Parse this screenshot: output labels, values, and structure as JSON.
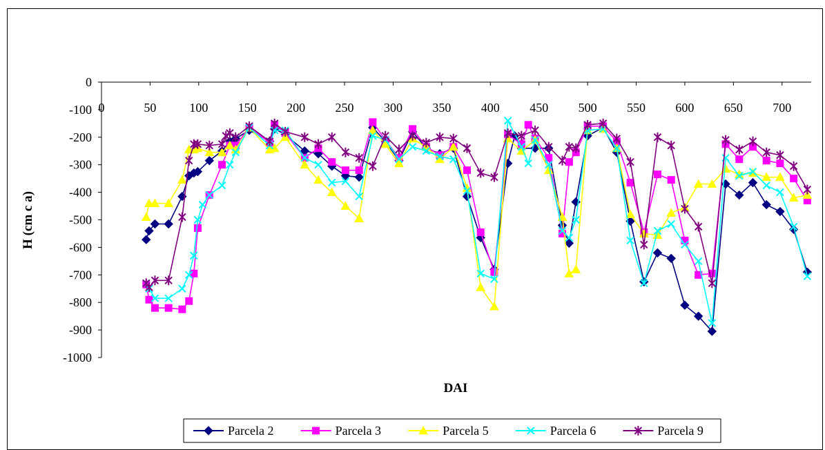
{
  "chart_data": {
    "type": "line",
    "title": "",
    "xlabel": "DAI",
    "ylabel": "H (cm c a)",
    "xlim": [
      0,
      730
    ],
    "ylim": [
      -1000,
      0
    ],
    "x_ticks": [
      0,
      50,
      100,
      150,
      200,
      250,
      300,
      350,
      400,
      450,
      500,
      550,
      600,
      650,
      700
    ],
    "y_ticks": [
      0,
      -100,
      -200,
      -300,
      -400,
      -500,
      -600,
      -700,
      -800,
      -900,
      -1000
    ],
    "grid": false,
    "legend_position": "bottom",
    "series": [
      {
        "name": "Parcela 2",
        "color": "#000080",
        "marker": "diamond",
        "points": [
          [
            46,
            -572
          ],
          [
            49,
            -540
          ],
          [
            55,
            -515
          ],
          [
            69,
            -515
          ],
          [
            83,
            -415
          ],
          [
            90,
            -340
          ],
          [
            95,
            -330
          ],
          [
            99,
            -325
          ],
          [
            111,
            -285
          ],
          [
            124,
            -250
          ],
          [
            132,
            -215
          ],
          [
            138,
            -205
          ],
          [
            152,
            -175
          ],
          [
            173,
            -215
          ],
          [
            178,
            -170
          ],
          [
            189,
            -190
          ],
          [
            209,
            -250
          ],
          [
            223,
            -260
          ],
          [
            237,
            -305
          ],
          [
            251,
            -340
          ],
          [
            265,
            -345
          ],
          [
            279,
            -165
          ],
          [
            292,
            -215
          ],
          [
            306,
            -285
          ],
          [
            320,
            -180
          ],
          [
            334,
            -240
          ],
          [
            348,
            -260
          ],
          [
            362,
            -240
          ],
          [
            376,
            -415
          ],
          [
            390,
            -565
          ],
          [
            404,
            -680
          ],
          [
            418,
            -295
          ],
          [
            425,
            -195
          ],
          [
            432,
            -240
          ],
          [
            446,
            -240
          ],
          [
            460,
            -240
          ],
          [
            474,
            -520
          ],
          [
            481,
            -585
          ],
          [
            488,
            -435
          ],
          [
            500,
            -195
          ],
          [
            516,
            -165
          ],
          [
            530,
            -255
          ],
          [
            544,
            -505
          ],
          [
            558,
            -725
          ],
          [
            572,
            -620
          ],
          [
            586,
            -640
          ],
          [
            600,
            -810
          ],
          [
            614,
            -850
          ],
          [
            628,
            -905
          ],
          [
            642,
            -370
          ],
          [
            656,
            -410
          ],
          [
            670,
            -365
          ],
          [
            684,
            -445
          ],
          [
            698,
            -470
          ],
          [
            712,
            -535
          ],
          [
            726,
            -690
          ]
        ]
      },
      {
        "name": "Parcela 3",
        "color": "#ff00ff",
        "marker": "square",
        "points": [
          [
            46,
            -735
          ],
          [
            49,
            -790
          ],
          [
            55,
            -820
          ],
          [
            69,
            -820
          ],
          [
            83,
            -825
          ],
          [
            90,
            -795
          ],
          [
            95,
            -695
          ],
          [
            99,
            -530
          ],
          [
            111,
            -410
          ],
          [
            124,
            -300
          ],
          [
            132,
            -230
          ],
          [
            138,
            -230
          ],
          [
            152,
            -165
          ],
          [
            173,
            -220
          ],
          [
            178,
            -155
          ],
          [
            189,
            -185
          ],
          [
            209,
            -275
          ],
          [
            223,
            -240
          ],
          [
            237,
            -290
          ],
          [
            251,
            -320
          ],
          [
            265,
            -320
          ],
          [
            279,
            -145
          ],
          [
            292,
            -210
          ],
          [
            306,
            -275
          ],
          [
            320,
            -170
          ],
          [
            334,
            -235
          ],
          [
            348,
            -265
          ],
          [
            362,
            -235
          ],
          [
            376,
            -320
          ],
          [
            390,
            -545
          ],
          [
            404,
            -690
          ],
          [
            418,
            -190
          ],
          [
            432,
            -225
          ],
          [
            439,
            -155
          ],
          [
            446,
            -205
          ],
          [
            460,
            -275
          ],
          [
            474,
            -550
          ],
          [
            481,
            -290
          ],
          [
            488,
            -255
          ],
          [
            500,
            -160
          ],
          [
            516,
            -160
          ],
          [
            530,
            -215
          ],
          [
            544,
            -365
          ],
          [
            558,
            -545
          ],
          [
            572,
            -335
          ],
          [
            586,
            -355
          ],
          [
            600,
            -575
          ],
          [
            614,
            -700
          ],
          [
            628,
            -695
          ],
          [
            642,
            -225
          ],
          [
            656,
            -280
          ],
          [
            670,
            -235
          ],
          [
            684,
            -285
          ],
          [
            698,
            -295
          ],
          [
            712,
            -350
          ],
          [
            726,
            -430
          ]
        ]
      },
      {
        "name": "Parcela 5",
        "color": "#ffff00",
        "marker": "triangle",
        "points": [
          [
            46,
            -490
          ],
          [
            49,
            -440
          ],
          [
            55,
            -440
          ],
          [
            69,
            -440
          ],
          [
            83,
            -355
          ],
          [
            90,
            -245
          ],
          [
            95,
            -245
          ],
          [
            99,
            -240
          ],
          [
            111,
            -255
          ],
          [
            124,
            -255
          ],
          [
            132,
            -230
          ],
          [
            138,
            -245
          ],
          [
            152,
            -165
          ],
          [
            173,
            -245
          ],
          [
            178,
            -240
          ],
          [
            189,
            -200
          ],
          [
            209,
            -300
          ],
          [
            223,
            -355
          ],
          [
            237,
            -400
          ],
          [
            251,
            -450
          ],
          [
            265,
            -495
          ],
          [
            279,
            -175
          ],
          [
            292,
            -225
          ],
          [
            306,
            -295
          ],
          [
            320,
            -205
          ],
          [
            334,
            -235
          ],
          [
            348,
            -280
          ],
          [
            362,
            -235
          ],
          [
            376,
            -385
          ],
          [
            390,
            -745
          ],
          [
            404,
            -815
          ],
          [
            418,
            -205
          ],
          [
            432,
            -250
          ],
          [
            446,
            -210
          ],
          [
            460,
            -320
          ],
          [
            474,
            -490
          ],
          [
            481,
            -695
          ],
          [
            488,
            -680
          ],
          [
            500,
            -175
          ],
          [
            516,
            -170
          ],
          [
            530,
            -240
          ],
          [
            544,
            -480
          ],
          [
            558,
            -550
          ],
          [
            572,
            -555
          ],
          [
            586,
            -475
          ],
          [
            600,
            -455
          ],
          [
            614,
            -370
          ],
          [
            628,
            -370
          ],
          [
            642,
            -315
          ],
          [
            656,
            -335
          ],
          [
            670,
            -330
          ],
          [
            684,
            -345
          ],
          [
            698,
            -345
          ],
          [
            712,
            -420
          ],
          [
            726,
            -410
          ]
        ]
      },
      {
        "name": "Parcela 6",
        "color": "#00ffff",
        "marker": "x",
        "points": [
          [
            46,
            -730
          ],
          [
            49,
            -750
          ],
          [
            55,
            -785
          ],
          [
            69,
            -785
          ],
          [
            83,
            -750
          ],
          [
            90,
            -700
          ],
          [
            95,
            -630
          ],
          [
            99,
            -500
          ],
          [
            104,
            -445
          ],
          [
            111,
            -410
          ],
          [
            124,
            -375
          ],
          [
            132,
            -300
          ],
          [
            138,
            -255
          ],
          [
            152,
            -165
          ],
          [
            173,
            -230
          ],
          [
            178,
            -175
          ],
          [
            189,
            -175
          ],
          [
            209,
            -275
          ],
          [
            223,
            -300
          ],
          [
            237,
            -365
          ],
          [
            251,
            -360
          ],
          [
            265,
            -415
          ],
          [
            279,
            -195
          ],
          [
            292,
            -210
          ],
          [
            306,
            -280
          ],
          [
            320,
            -235
          ],
          [
            334,
            -250
          ],
          [
            348,
            -270
          ],
          [
            362,
            -280
          ],
          [
            376,
            -395
          ],
          [
            390,
            -695
          ],
          [
            404,
            -715
          ],
          [
            418,
            -140
          ],
          [
            432,
            -235
          ],
          [
            439,
            -295
          ],
          [
            446,
            -210
          ],
          [
            460,
            -300
          ],
          [
            474,
            -540
          ],
          [
            481,
            -565
          ],
          [
            488,
            -500
          ],
          [
            500,
            -175
          ],
          [
            516,
            -170
          ],
          [
            530,
            -240
          ],
          [
            544,
            -575
          ],
          [
            558,
            -730
          ],
          [
            572,
            -540
          ],
          [
            586,
            -515
          ],
          [
            600,
            -590
          ],
          [
            614,
            -650
          ],
          [
            628,
            -875
          ],
          [
            642,
            -275
          ],
          [
            656,
            -340
          ],
          [
            670,
            -325
          ],
          [
            684,
            -375
          ],
          [
            698,
            -400
          ],
          [
            712,
            -525
          ],
          [
            726,
            -705
          ]
        ]
      },
      {
        "name": "Parcela 9",
        "color": "#800080",
        "marker": "star",
        "points": [
          [
            46,
            -730
          ],
          [
            49,
            -745
          ],
          [
            55,
            -720
          ],
          [
            69,
            -720
          ],
          [
            83,
            -490
          ],
          [
            90,
            -285
          ],
          [
            95,
            -225
          ],
          [
            99,
            -225
          ],
          [
            111,
            -230
          ],
          [
            124,
            -225
          ],
          [
            128,
            -195
          ],
          [
            132,
            -185
          ],
          [
            138,
            -200
          ],
          [
            152,
            -160
          ],
          [
            173,
            -215
          ],
          [
            178,
            -150
          ],
          [
            189,
            -180
          ],
          [
            209,
            -200
          ],
          [
            223,
            -225
          ],
          [
            237,
            -200
          ],
          [
            251,
            -255
          ],
          [
            265,
            -275
          ],
          [
            279,
            -305
          ],
          [
            292,
            -195
          ],
          [
            306,
            -245
          ],
          [
            320,
            -195
          ],
          [
            334,
            -220
          ],
          [
            348,
            -200
          ],
          [
            362,
            -205
          ],
          [
            376,
            -240
          ],
          [
            390,
            -330
          ],
          [
            404,
            -345
          ],
          [
            418,
            -185
          ],
          [
            432,
            -195
          ],
          [
            446,
            -175
          ],
          [
            460,
            -235
          ],
          [
            474,
            -285
          ],
          [
            481,
            -235
          ],
          [
            488,
            -240
          ],
          [
            500,
            -155
          ],
          [
            516,
            -150
          ],
          [
            530,
            -205
          ],
          [
            544,
            -290
          ],
          [
            558,
            -590
          ],
          [
            572,
            -200
          ],
          [
            586,
            -230
          ],
          [
            600,
            -460
          ],
          [
            614,
            -525
          ],
          [
            628,
            -730
          ],
          [
            642,
            -210
          ],
          [
            656,
            -245
          ],
          [
            670,
            -215
          ],
          [
            684,
            -255
          ],
          [
            698,
            -265
          ],
          [
            712,
            -305
          ],
          [
            726,
            -390
          ]
        ]
      }
    ]
  }
}
